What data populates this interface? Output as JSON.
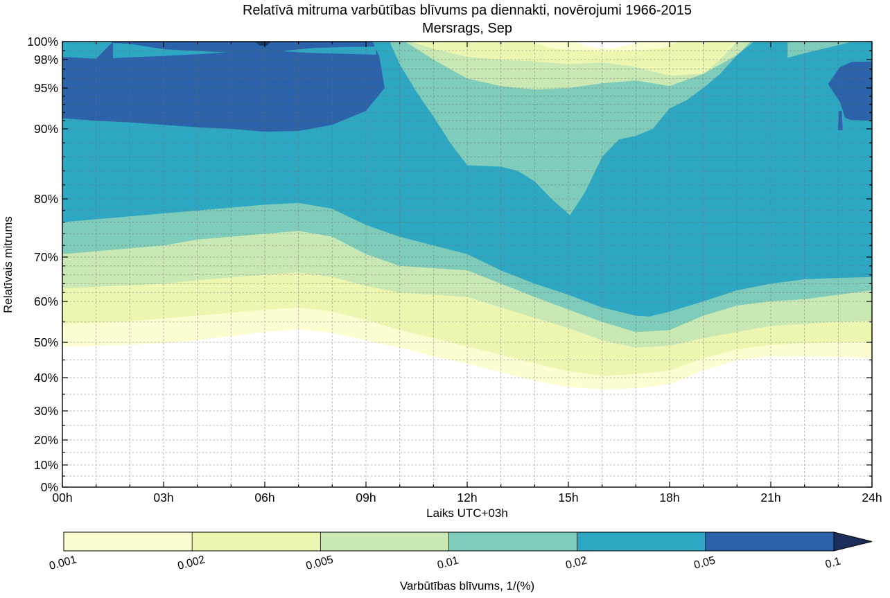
{
  "title": "Relatīvā mitruma varbūtības blīvums pa diennakti, novērojumi 1966-2015",
  "subtitle": "Mersrags, Sep",
  "axes": {
    "ylabel": "Relatīvais mitrums",
    "xlabel": "Laiks UTC+03h",
    "x_ticks": [
      {
        "label": "00h",
        "value": 0
      },
      {
        "label": "03h",
        "value": 3
      },
      {
        "label": "06h",
        "value": 6
      },
      {
        "label": "09h",
        "value": 9
      },
      {
        "label": "12h",
        "value": 12
      },
      {
        "label": "15h",
        "value": 15
      },
      {
        "label": "18h",
        "value": 18
      },
      {
        "label": "21h",
        "value": 21
      },
      {
        "label": "24h",
        "value": 24
      }
    ],
    "y_ticks": [
      {
        "label": "0%",
        "value": 0
      },
      {
        "label": "10%",
        "value": 10
      },
      {
        "label": "20%",
        "value": 20
      },
      {
        "label": "30%",
        "value": 30
      },
      {
        "label": "40%",
        "value": 40
      },
      {
        "label": "50%",
        "value": 50
      },
      {
        "label": "60%",
        "value": 60
      },
      {
        "label": "70%",
        "value": 70
      },
      {
        "label": "80%",
        "value": 80
      },
      {
        "label": "90%",
        "value": 90
      },
      {
        "label": "95%",
        "value": 95
      },
      {
        "label": "98%",
        "value": 98
      },
      {
        "label": "100%",
        "value": 100
      }
    ]
  },
  "colorbar": {
    "label": "Varbūtības blīvums, 1/(%)",
    "tick_labels": [
      "0.001",
      "0.002",
      "0.005",
      "0.01",
      "0.02",
      "0.05",
      "0.1"
    ],
    "segment_colors": [
      "#fdfdd2",
      "#ecf6b1",
      "#c9e8b4",
      "#80ccba",
      "#2ea7c3",
      "#2b62a9"
    ],
    "arrow_color": "#1b2d5a"
  },
  "chart_data": {
    "type": "filled_contour",
    "title": "Relatīvā mitruma varbūtības blīvums pa diennakti, novērojumi 1966-2015 — Mersrags, Sep",
    "x_unit": "hour UTC+03",
    "y_unit": "relative humidity %",
    "x_range": [
      0,
      24
    ],
    "y_range": [
      0,
      100
    ],
    "y_scale": "nonlinear, expands high humidities (labeled ticks 0,10,...,90,95,98,100)",
    "levels": [
      0.001,
      0.002,
      0.005,
      0.01,
      0.02,
      0.05,
      0.1
    ],
    "background_color": "#ffffff",
    "bands": [
      {
        "level": 0.001,
        "color": "#fdfdd2",
        "lower": [
          [
            0,
            48.8
          ],
          [
            1,
            49
          ],
          [
            2,
            49.3
          ],
          [
            3,
            49.8
          ],
          [
            4,
            50.5
          ],
          [
            5,
            51.5
          ],
          [
            6,
            52.5
          ],
          [
            7,
            53.2
          ],
          [
            8,
            52.3
          ],
          [
            9,
            50.5
          ],
          [
            10,
            48.5
          ],
          [
            11,
            46
          ],
          [
            12,
            44
          ],
          [
            13,
            41.5
          ],
          [
            14,
            39
          ],
          [
            15,
            37.2
          ],
          [
            16,
            36.4
          ],
          [
            17,
            36.8
          ],
          [
            18,
            38
          ],
          [
            19,
            42
          ],
          [
            20,
            45
          ],
          [
            21,
            46
          ],
          [
            22,
            46
          ],
          [
            23,
            45.8
          ],
          [
            24,
            45.5
          ]
        ],
        "upper": [
          [
            0,
            100
          ],
          [
            15.2,
            100
          ],
          [
            15.7,
            99.35
          ],
          [
            16.3,
            99.25
          ],
          [
            17.2,
            100
          ],
          [
            24,
            100
          ]
        ]
      },
      {
        "level": 0.002,
        "color": "#ecf6b1",
        "lower": [
          [
            0,
            54.5
          ],
          [
            1,
            54.8
          ],
          [
            2,
            55.2
          ],
          [
            3,
            55.8
          ],
          [
            4,
            56.5
          ],
          [
            5,
            57.2
          ],
          [
            6,
            58
          ],
          [
            7,
            58.5
          ],
          [
            8,
            57.5
          ],
          [
            9,
            55.5
          ],
          [
            10,
            53
          ],
          [
            11,
            51
          ],
          [
            12,
            48.8
          ],
          [
            13,
            46.5
          ],
          [
            14,
            44
          ],
          [
            15,
            41.8
          ],
          [
            16,
            40.5
          ],
          [
            17,
            41
          ],
          [
            18,
            42
          ],
          [
            19,
            45.5
          ],
          [
            20,
            48
          ],
          [
            21,
            49.3
          ],
          [
            22,
            49.8
          ],
          [
            23,
            50
          ],
          [
            24,
            50
          ]
        ],
        "upper": [
          [
            0,
            100
          ],
          [
            13.8,
            100
          ],
          [
            14.5,
            99.3
          ],
          [
            15,
            99.1
          ],
          [
            16,
            98.9
          ],
          [
            17,
            99
          ],
          [
            17.8,
            99.3
          ],
          [
            18.3,
            100
          ],
          [
            24,
            100
          ]
        ]
      },
      {
        "level": 0.005,
        "color": "#c9e8b4",
        "lower": [
          [
            0,
            63
          ],
          [
            1,
            63.3
          ],
          [
            2,
            63.6
          ],
          [
            3,
            64
          ],
          [
            4,
            64.8
          ],
          [
            5,
            65.4
          ],
          [
            6,
            66
          ],
          [
            7,
            66.5
          ],
          [
            8,
            65.5
          ],
          [
            9,
            63.5
          ],
          [
            10,
            62
          ],
          [
            11,
            61.5
          ],
          [
            12,
            61
          ],
          [
            13,
            58.5
          ],
          [
            14,
            56
          ],
          [
            15,
            53.5
          ],
          [
            16,
            50.5
          ],
          [
            17,
            48.5
          ],
          [
            18,
            49
          ],
          [
            19,
            51
          ],
          [
            20,
            52.5
          ],
          [
            21,
            54
          ],
          [
            22,
            54.5
          ],
          [
            23,
            55
          ],
          [
            24,
            55.3
          ]
        ],
        "upper": [
          [
            0,
            100
          ],
          [
            10.3,
            100
          ],
          [
            11,
            99.2
          ],
          [
            12,
            98.3
          ],
          [
            13,
            98
          ],
          [
            14,
            97.8
          ],
          [
            15,
            97.5
          ],
          [
            16,
            97.7
          ],
          [
            17,
            97.2
          ],
          [
            18,
            96.3
          ],
          [
            19,
            96.5
          ],
          [
            19.5,
            98
          ],
          [
            20,
            100
          ],
          [
            24,
            100
          ]
        ]
      },
      {
        "level": 0.01,
        "color": "#80ccba",
        "lower": [
          [
            0,
            70.5
          ],
          [
            1,
            71
          ],
          [
            2,
            71.5
          ],
          [
            3,
            72
          ],
          [
            4,
            73
          ],
          [
            5,
            73.5
          ],
          [
            6,
            74
          ],
          [
            7,
            74.5
          ],
          [
            8,
            73.5
          ],
          [
            9,
            70.5
          ],
          [
            10,
            68
          ],
          [
            11,
            67.5
          ],
          [
            12,
            67
          ],
          [
            13,
            64
          ],
          [
            14,
            61
          ],
          [
            15,
            58
          ],
          [
            16,
            55
          ],
          [
            17,
            52.5
          ],
          [
            18,
            53
          ],
          [
            19,
            56.5
          ],
          [
            20,
            59
          ],
          [
            21,
            60
          ],
          [
            22,
            60.5
          ],
          [
            23,
            61.5
          ],
          [
            24,
            62.5
          ]
        ],
        "upper": [
          [
            0,
            100
          ],
          [
            10.15,
            100
          ],
          [
            11,
            98
          ],
          [
            12,
            96
          ],
          [
            13,
            95.2
          ],
          [
            14,
            94.8
          ],
          [
            15,
            95
          ],
          [
            16,
            95.5
          ],
          [
            17,
            95.8
          ],
          [
            18,
            95.2
          ],
          [
            19,
            96.5
          ],
          [
            20,
            98.5
          ],
          [
            20.4,
            100
          ],
          [
            24,
            100
          ]
        ]
      },
      {
        "level": 0.02,
        "color": "#2ea7c3",
        "lower": [
          [
            0,
            76
          ],
          [
            1,
            76.5
          ],
          [
            2,
            77
          ],
          [
            3,
            77.5
          ],
          [
            4,
            78
          ],
          [
            5,
            78.5
          ],
          [
            6,
            79
          ],
          [
            7,
            79.3
          ],
          [
            8,
            78.3
          ],
          [
            9,
            75.5
          ],
          [
            10,
            73.5
          ],
          [
            11,
            72
          ],
          [
            12,
            70.5
          ],
          [
            13,
            67
          ],
          [
            14,
            64
          ],
          [
            15,
            61.5
          ],
          [
            16,
            58.5
          ],
          [
            17,
            56.5
          ],
          [
            17.4,
            56.3
          ],
          [
            18,
            57.5
          ],
          [
            19,
            60
          ],
          [
            20,
            62.5
          ],
          [
            21,
            64
          ],
          [
            22,
            65
          ],
          [
            23,
            65.3
          ],
          [
            24,
            65.5
          ]
        ],
        "upper": [
          [
            0,
            100
          ],
          [
            9.7,
            100
          ],
          [
            10,
            97.5
          ],
          [
            10.5,
            94.5
          ],
          [
            11,
            91.5
          ],
          [
            11.5,
            88
          ],
          [
            12,
            84.8
          ],
          [
            13,
            84.6
          ],
          [
            13.5,
            84
          ],
          [
            14,
            82.5
          ],
          [
            14.5,
            80
          ],
          [
            15.05,
            77.2
          ],
          [
            15.5,
            81
          ],
          [
            16,
            86
          ],
          [
            16.5,
            88.5
          ],
          [
            17,
            89
          ],
          [
            17.5,
            90
          ],
          [
            18,
            92.5
          ],
          [
            18.5,
            93.5
          ],
          [
            19,
            95
          ],
          [
            19.5,
            96.5
          ],
          [
            20,
            98.5
          ],
          [
            20.5,
            100
          ],
          [
            24,
            100
          ]
        ]
      }
    ],
    "extra_regions": [
      {
        "name": "night-high-density-blob",
        "band": "0.05-0.1",
        "color": "#2b62a9",
        "points": [
          [
            0,
            91.3
          ],
          [
            1,
            91
          ],
          [
            2,
            90.8
          ],
          [
            3,
            90.5
          ],
          [
            4,
            90.2
          ],
          [
            5,
            90
          ],
          [
            6,
            89.6
          ],
          [
            7,
            89.7
          ],
          [
            8,
            90.5
          ],
          [
            9,
            92.2
          ],
          [
            9.55,
            95
          ],
          [
            9.4,
            98.3
          ],
          [
            9.2,
            100
          ],
          [
            1.5,
            100
          ],
          [
            1,
            98.1
          ],
          [
            0,
            98.3
          ]
        ]
      },
      {
        "name": "cyan-sliver-morning-a",
        "band": "0.02-0.05",
        "color": "#2ea7c3",
        "points": [
          [
            1.5,
            99.85
          ],
          [
            2,
            99.75
          ],
          [
            3,
            99.15
          ],
          [
            4,
            98.95
          ],
          [
            4.9,
            98.8
          ],
          [
            4,
            98.6
          ],
          [
            3,
            98.4
          ],
          [
            2,
            98.25
          ],
          [
            1.5,
            98.15
          ]
        ]
      },
      {
        "name": "cyan-sliver-morning-b",
        "band": "0.02-0.05",
        "color": "#2ea7c3",
        "points": [
          [
            6.6,
            99.0
          ],
          [
            7.5,
            99.3
          ],
          [
            8.5,
            99.4
          ],
          [
            9.3,
            99.45
          ],
          [
            9.3,
            98.55
          ],
          [
            8.5,
            98.62
          ],
          [
            7.5,
            98.72
          ],
          [
            6.6,
            98.9
          ]
        ]
      },
      {
        "name": "navy-peak-spot-06h",
        "band": ">0.1",
        "color": "#1b3a6b",
        "points": [
          [
            5.7,
            100
          ],
          [
            6.2,
            100
          ],
          [
            6.05,
            99.55
          ],
          [
            5.85,
            99.55
          ]
        ]
      },
      {
        "name": "evening-high-density-blob",
        "band": "0.05-0.1",
        "color": "#2b62a9",
        "points": [
          [
            22.7,
            95.4
          ],
          [
            23.05,
            93.3
          ],
          [
            23.2,
            91.4
          ],
          [
            23.35,
            91.1
          ],
          [
            24,
            91
          ],
          [
            24,
            97.8
          ],
          [
            23.4,
            97.75
          ],
          [
            23.05,
            97.2
          ],
          [
            22.85,
            96.2
          ]
        ]
      },
      {
        "name": "evening-blob-drip-23h",
        "band": "0.05-0.1",
        "color": "#2b62a9",
        "points": [
          [
            23.02,
            92.2
          ],
          [
            23.1,
            92.2
          ],
          [
            23.13,
            89.8
          ],
          [
            22.99,
            89.8
          ]
        ]
      },
      {
        "name": "teal-wedge-top-22h",
        "band": "0.01-0.02",
        "color": "#80ccba",
        "points": [
          [
            21.5,
            100
          ],
          [
            23.4,
            100
          ],
          [
            23.0,
            99.6
          ],
          [
            22.5,
            99.15
          ],
          [
            22,
            98.7
          ],
          [
            21.5,
            98.2
          ]
        ]
      }
    ]
  }
}
